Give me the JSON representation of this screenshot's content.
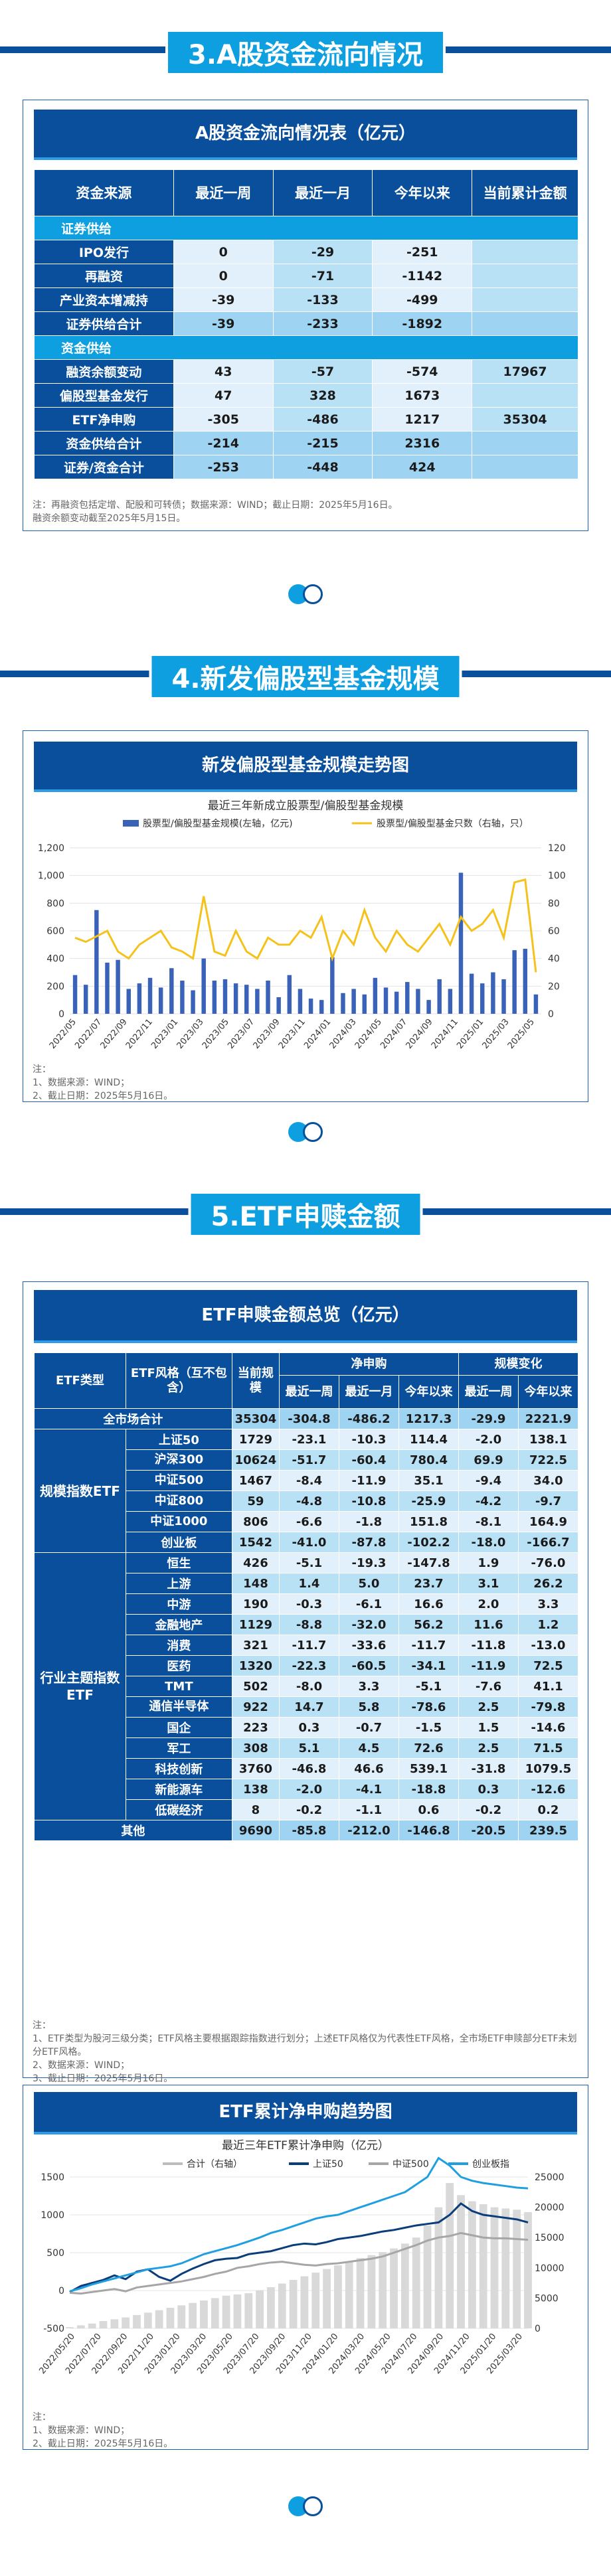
{
  "sections": {
    "s3": "3.A股资金流向情况",
    "s4": "4.新发偏股型基金规模",
    "s5": "5.ETF申赎金额"
  },
  "t1": {
    "title": "A股资金流向情况表（亿元）",
    "headers": [
      "资金来源",
      "最近一周",
      "最近一月",
      "今年以来",
      "当前累计金额"
    ],
    "sec1": "证券供给",
    "sec2": "资金供给",
    "supply": [
      [
        "IPO发行",
        "0",
        "-29",
        "-251",
        ""
      ],
      [
        "再融资",
        "0",
        "-71",
        "-1142",
        ""
      ],
      [
        "产业资本增减持",
        "-39",
        "-133",
        "-499",
        ""
      ]
    ],
    "supply_total": [
      "证券供给合计",
      "-39",
      "-233",
      "-1892",
      ""
    ],
    "capital": [
      [
        "融资余额变动",
        "43",
        "-57",
        "-574",
        "17967"
      ],
      [
        "偏股型基金发行",
        "47",
        "328",
        "1673",
        ""
      ],
      [
        "ETF净申购",
        "-305",
        "-486",
        "1217",
        "35304"
      ]
    ],
    "capital_total": [
      "资金供给合计",
      "-214",
      "-215",
      "2316",
      ""
    ],
    "ratio": [
      "证券/资金合计",
      "-253",
      "-448",
      "424",
      ""
    ],
    "note": "注：再融资包括定增、配股和可转债；数据来源：WIND；截止日期：2025年5月16日。\n融资余额变动截至2025年5月15日。"
  },
  "c1": {
    "title": "新发偏股型基金规模走势图",
    "subtitle": "最近三年新成立股票型/偏股型基金规模",
    "legend_bar": "股票型/偏股型基金规模(左轴，亿元)",
    "legend_line": "股票型/偏股型基金只数（右轴，只）",
    "left_ticks": [
      "0",
      "200",
      "400",
      "600",
      "800",
      "1,000",
      "1,200"
    ],
    "right_ticks": [
      "0",
      "20",
      "40",
      "60",
      "80",
      "100",
      "120"
    ],
    "x_ticks": [
      "2022/05",
      "2022/07",
      "2022/09",
      "2022/11",
      "2023/01",
      "2023/03",
      "2023/05",
      "2023/07",
      "2023/09",
      "2023/11",
      "2024/01",
      "2024/03",
      "2024/05",
      "2024/07",
      "2024/09",
      "2024/11",
      "2025/01",
      "2025/03",
      "2025/05"
    ],
    "note": "注：\n1、数据来源：WIND；\n2、截止日期：2025年5月16日。"
  },
  "chart_data": [
    {
      "type": "bar",
      "title": "最近三年新成立股票型/偏股型基金规模",
      "series": [
        {
          "name": "股票型/偏股型基金规模(左轴，亿元)",
          "values": [
            280,
            210,
            750,
            370,
            390,
            180,
            220,
            260,
            190,
            330,
            240,
            170,
            400,
            240,
            250,
            220,
            210,
            180,
            240,
            120,
            280,
            180,
            110,
            100,
            410,
            150,
            180,
            140,
            260,
            190,
            160,
            230,
            180,
            100,
            250,
            180,
            1020,
            290,
            220,
            300,
            250,
            460,
            470,
            140
          ]
        },
        {
          "name": "股票型/偏股型基金只数（右轴，只）",
          "type": "line",
          "values": [
            55,
            52,
            56,
            60,
            45,
            40,
            50,
            55,
            60,
            48,
            45,
            40,
            85,
            45,
            42,
            60,
            45,
            40,
            55,
            50,
            50,
            60,
            55,
            70,
            40,
            60,
            50,
            75,
            55,
            45,
            60,
            50,
            45,
            55,
            65,
            50,
            70,
            60,
            65,
            75,
            55,
            95,
            97,
            30
          ]
        }
      ],
      "ylim_left": [
        0,
        1200
      ],
      "ylim_right": [
        0,
        120
      ]
    },
    {
      "type": "line",
      "title": "最近三年ETF累计净申购（亿元）",
      "series": [
        {
          "name": "合计（右轴）",
          "values": [
            200,
            500,
            800,
            1200,
            1500,
            1800,
            2200,
            2600,
            3000,
            3400,
            3800,
            4200,
            4600,
            5000,
            5400,
            5600,
            5800,
            6300,
            6800,
            7400,
            8000,
            8600,
            9200,
            9800,
            10400,
            11000,
            11600,
            12100,
            12600,
            13200,
            14000,
            15000,
            17000,
            20000,
            24000,
            22000,
            21000,
            20500,
            20000,
            19800,
            19600,
            19200
          ]
        },
        {
          "name": "上证50",
          "values": [
            -20,
            60,
            100,
            140,
            200,
            150,
            250,
            280,
            180,
            130,
            220,
            290,
            350,
            400,
            420,
            430,
            480,
            500,
            520,
            560,
            600,
            620,
            610,
            640,
            680,
            700,
            720,
            750,
            780,
            800,
            830,
            860,
            880,
            900,
            1000,
            1150,
            1050,
            1000,
            980,
            960,
            940,
            900
          ]
        },
        {
          "name": "中证500",
          "values": [
            -30,
            -40,
            -20,
            0,
            20,
            -10,
            40,
            60,
            80,
            100,
            120,
            150,
            180,
            220,
            250,
            300,
            320,
            350,
            370,
            380,
            360,
            340,
            330,
            350,
            360,
            380,
            400,
            420,
            450,
            500,
            550,
            600,
            660,
            700,
            720,
            760,
            730,
            700,
            690,
            690,
            680,
            670
          ]
        },
        {
          "name": "创业板指",
          "values": [
            -10,
            30,
            80,
            120,
            160,
            200,
            240,
            280,
            300,
            320,
            360,
            420,
            480,
            520,
            560,
            600,
            650,
            700,
            760,
            800,
            850,
            900,
            950,
            980,
            1000,
            1050,
            1100,
            1150,
            1200,
            1250,
            1300,
            1400,
            1500,
            1750,
            1650,
            1500,
            1450,
            1420,
            1400,
            1380,
            1360,
            1350
          ]
        }
      ],
      "ylim_left": [
        -500,
        1500
      ],
      "ylim_right": [
        0,
        25000
      ]
    }
  ],
  "t2": {
    "title": "ETF申赎金额总览（亿元）",
    "h1": [
      "ETF类型",
      "ETF风格（互不包含）",
      "当前规模",
      "净申购",
      "规模变化"
    ],
    "h2": [
      "最近一周",
      "最近一月",
      "今年以来",
      "最近一周",
      "今年以来"
    ],
    "all": [
      "全市场合计",
      "35304",
      "-304.8",
      "-486.2",
      "1217.3",
      "-29.9",
      "2221.9"
    ],
    "g1": "规模指数ETF",
    "g2": "行业主题指数ETF",
    "other_label": "其他",
    "scale": [
      [
        "上证50",
        "1729",
        "-23.1",
        "-10.3",
        "114.4",
        "-2.0",
        "138.1"
      ],
      [
        "沪深300",
        "10624",
        "-51.7",
        "-60.4",
        "780.4",
        "69.9",
        "722.5"
      ],
      [
        "中证500",
        "1467",
        "-8.4",
        "-11.9",
        "35.1",
        "-9.4",
        "34.0"
      ],
      [
        "中证800",
        "59",
        "-4.8",
        "-10.8",
        "-25.9",
        "-4.2",
        "-9.7"
      ],
      [
        "中证1000",
        "806",
        "-6.6",
        "-1.8",
        "151.8",
        "-8.1",
        "164.9"
      ],
      [
        "创业板",
        "1542",
        "-41.0",
        "-87.8",
        "-102.2",
        "-18.0",
        "-166.7"
      ]
    ],
    "industry": [
      [
        "恒生",
        "426",
        "-5.1",
        "-19.3",
        "-147.8",
        "1.9",
        "-76.0"
      ],
      [
        "上游",
        "148",
        "1.4",
        "5.0",
        "23.7",
        "3.1",
        "26.2"
      ],
      [
        "中游",
        "190",
        "-0.3",
        "-6.1",
        "16.6",
        "2.0",
        "3.3"
      ],
      [
        "金融地产",
        "1129",
        "-8.8",
        "-32.0",
        "56.2",
        "11.6",
        "1.2"
      ],
      [
        "消费",
        "321",
        "-11.7",
        "-33.6",
        "-11.7",
        "-11.8",
        "-13.0"
      ],
      [
        "医药",
        "1320",
        "-22.3",
        "-60.5",
        "-34.1",
        "-11.9",
        "72.5"
      ],
      [
        "TMT",
        "502",
        "-8.0",
        "3.3",
        "-5.1",
        "-7.6",
        "41.1"
      ],
      [
        "通信半导体",
        "922",
        "14.7",
        "5.8",
        "-78.6",
        "2.5",
        "-79.8"
      ],
      [
        "国企",
        "223",
        "0.3",
        "-0.7",
        "-1.5",
        "1.5",
        "-14.6"
      ],
      [
        "军工",
        "308",
        "5.1",
        "4.5",
        "72.6",
        "2.5",
        "71.5"
      ],
      [
        "科技创新",
        "3760",
        "-46.8",
        "46.6",
        "539.1",
        "-31.8",
        "1079.5"
      ],
      [
        "新能源车",
        "138",
        "-2.0",
        "-4.1",
        "-18.8",
        "0.3",
        "-12.6"
      ],
      [
        "低碳经济",
        "8",
        "-0.2",
        "-1.1",
        "0.6",
        "-0.2",
        "0.2"
      ]
    ],
    "other": [
      "9690",
      "-85.8",
      "-212.0",
      "-146.8",
      "-20.5",
      "239.5"
    ],
    "note": "注：\n1、ETF类型为股河三级分类；ETF风格主要根据跟踪指数进行划分；上述ETF风格仅为代表性ETF风格，全市场ETF申赎部分ETF未划分ETF风格。\n2、数据来源：WIND；\n3、截止日期：2025年5月16日。"
  },
  "c2": {
    "title": "ETF累计净申购趋势图",
    "subtitle": "最近三年ETF累计净申购（亿元）",
    "legend": [
      "合计（右轴）",
      "上证50",
      "中证500",
      "创业板指"
    ],
    "left_ticks": [
      "-500",
      "0",
      "500",
      "1000",
      "1500"
    ],
    "right_ticks": [
      "0",
      "5000",
      "10000",
      "15000",
      "20000",
      "25000"
    ],
    "x_ticks": [
      "2022/05/20",
      "2022/07/20",
      "2022/09/20",
      "2022/11/20",
      "2023/01/20",
      "2023/03/20",
      "2023/05/20",
      "2023/07/20",
      "2023/09/20",
      "2023/11/20",
      "2024/01/20",
      "2024/03/20",
      "2024/05/20",
      "2024/07/20",
      "2024/09/20",
      "2024/11/20",
      "2025/01/20",
      "2025/03/20"
    ],
    "note": "注：\n1、数据来源：WIND；\n2、截止日期：2025年5月16日。"
  },
  "colors": {
    "navy": "#0a4f9c",
    "blue": "#0e9fe0",
    "bar": "#3a62b8",
    "line": "#f5c21b",
    "line2": "#1f9fe0",
    "grey": "#a6a6a6"
  }
}
